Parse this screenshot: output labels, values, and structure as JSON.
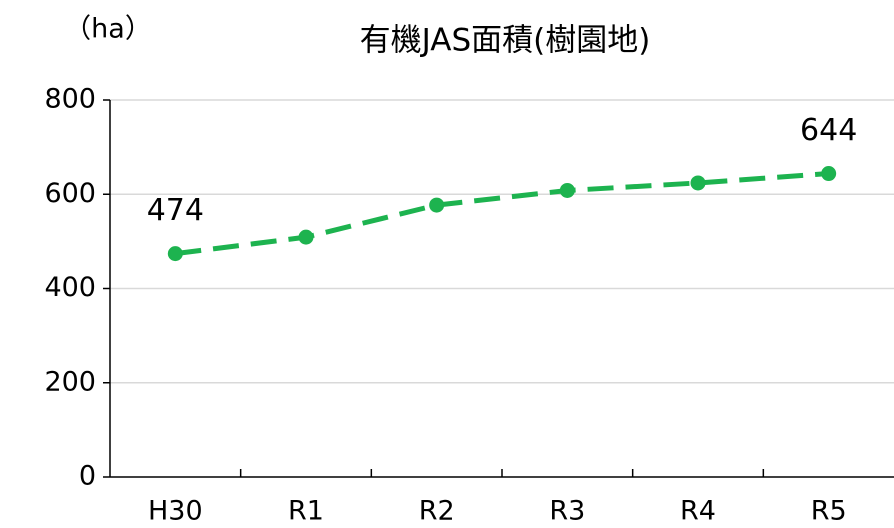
{
  "chart_data": {
    "type": "line",
    "title": "有機JAS面積(樹園地)",
    "ylabel": "（ha）",
    "categories": [
      "H30",
      "R1",
      "R2",
      "R3",
      "R4",
      "R5"
    ],
    "values": [
      474,
      509,
      577,
      608,
      624,
      644
    ],
    "value_labels": [
      "474",
      null,
      null,
      null,
      null,
      "644"
    ],
    "color": "#1db34f",
    "dashed": true,
    "ylim": [
      0,
      800
    ],
    "yticks": [
      0,
      200,
      400,
      600,
      800
    ],
    "grid": true
  }
}
